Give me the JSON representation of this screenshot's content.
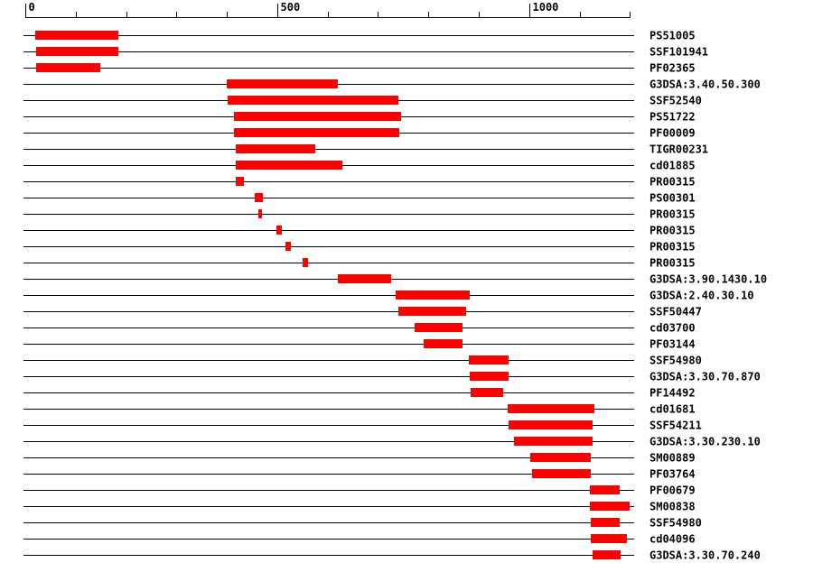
{
  "chart_data": {
    "type": "bar",
    "title": "",
    "xlabel": "",
    "ylabel": "",
    "xlim": [
      0,
      1200
    ],
    "axis_ticks": [
      {
        "value": 0,
        "label": "0"
      },
      {
        "value": 500,
        "label": "500"
      },
      {
        "value": 1000,
        "label": "1000"
      }
    ],
    "minor_tick_step": 100,
    "colors": {
      "bar": "#ff0000",
      "line": "#000000",
      "text": "#000000",
      "background": "#ffffff"
    },
    "rows": [
      {
        "label": "PS51005",
        "start": 20,
        "end": 185
      },
      {
        "label": "SSF101941",
        "start": 22,
        "end": 185
      },
      {
        "label": "PF02365",
        "start": 22,
        "end": 148
      },
      {
        "label": "G3DSA:3.40.50.300",
        "start": 400,
        "end": 620
      },
      {
        "label": "SSF52540",
        "start": 402,
        "end": 740
      },
      {
        "label": "PS51722",
        "start": 415,
        "end": 745
      },
      {
        "label": "PF00009",
        "start": 415,
        "end": 743
      },
      {
        "label": "TIGR00231",
        "start": 418,
        "end": 575
      },
      {
        "label": "cd01885",
        "start": 418,
        "end": 629
      },
      {
        "label": "PR00315",
        "start": 418,
        "end": 434
      },
      {
        "label": "PS00301",
        "start": 456,
        "end": 472
      },
      {
        "label": "PR00315",
        "start": 462,
        "end": 470
      },
      {
        "label": "PR00315",
        "start": 499,
        "end": 510
      },
      {
        "label": "PR00315",
        "start": 516,
        "end": 527
      },
      {
        "label": "PR00315",
        "start": 550,
        "end": 561
      },
      {
        "label": "G3DSA:3.90.1430.10",
        "start": 620,
        "end": 726
      },
      {
        "label": "G3DSA:2.40.30.10",
        "start": 735,
        "end": 882
      },
      {
        "label": "SSF50447",
        "start": 741,
        "end": 875
      },
      {
        "label": "cd03700",
        "start": 773,
        "end": 868
      },
      {
        "label": "PF03144",
        "start": 790,
        "end": 868
      },
      {
        "label": "SSF54980",
        "start": 880,
        "end": 960
      },
      {
        "label": "G3DSA:3.30.70.870",
        "start": 882,
        "end": 960
      },
      {
        "label": "PF14492",
        "start": 883,
        "end": 948
      },
      {
        "label": "cd01681",
        "start": 957,
        "end": 1130
      },
      {
        "label": "SSF54211",
        "start": 960,
        "end": 1126
      },
      {
        "label": "G3DSA:3.30.230.10",
        "start": 970,
        "end": 1126
      },
      {
        "label": "SM00889",
        "start": 1003,
        "end": 1122
      },
      {
        "label": "PF03764",
        "start": 1006,
        "end": 1122
      },
      {
        "label": "PF00679",
        "start": 1120,
        "end": 1180
      },
      {
        "label": "SM00838",
        "start": 1120,
        "end": 1200
      },
      {
        "label": "SSF54980",
        "start": 1123,
        "end": 1180
      },
      {
        "label": "cd04096",
        "start": 1123,
        "end": 1194
      },
      {
        "label": "G3DSA:3.30.70.240",
        "start": 1125,
        "end": 1181
      }
    ]
  }
}
